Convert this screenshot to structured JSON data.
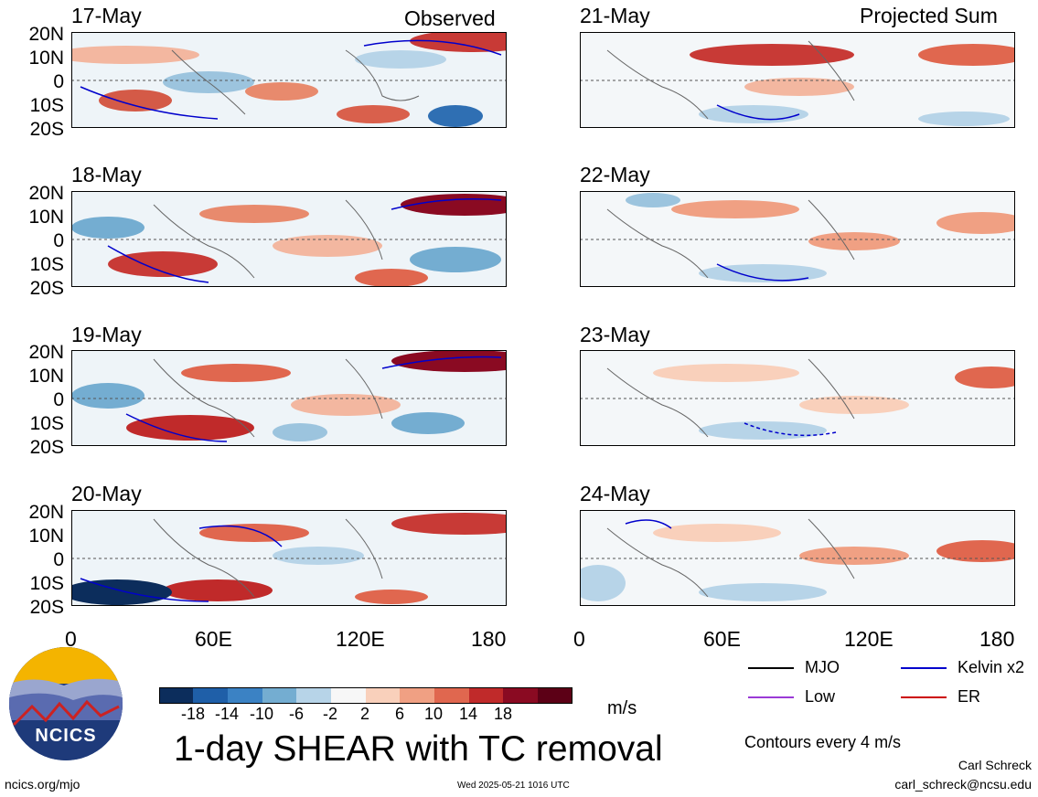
{
  "titles": {
    "left": "Observed",
    "right": "Projected Sum"
  },
  "panels_left": [
    {
      "date": "17-May"
    },
    {
      "date": "18-May"
    },
    {
      "date": "19-May"
    },
    {
      "date": "20-May"
    }
  ],
  "panels_right": [
    {
      "date": "21-May"
    },
    {
      "date": "22-May"
    },
    {
      "date": "23-May"
    },
    {
      "date": "24-May"
    }
  ],
  "lat_labels": [
    "20N",
    "10N",
    "0",
    "10S",
    "20S"
  ],
  "lon_labels": [
    "0",
    "60E",
    "120E",
    "180"
  ],
  "colorbar": {
    "ticks": [
      "-18",
      "-14",
      "-10",
      "-6",
      "-2",
      "2",
      "6",
      "10",
      "14",
      "18"
    ],
    "colors": [
      "#0c2d5c",
      "#1f5fa8",
      "#3b82c4",
      "#74add1",
      "#b7d4e8",
      "#f7f7f7",
      "#f9d0bb",
      "#f0a083",
      "#e0674f",
      "#c02a2a",
      "#8a0a22",
      "#5c0016"
    ],
    "unit": "m/s"
  },
  "main_title": "1-day SHEAR with TC removal",
  "legend": {
    "items": [
      {
        "label": "MJO",
        "color": "#000000"
      },
      {
        "label": "Kelvin x2",
        "color": "#0000cc"
      },
      {
        "label": "Low",
        "color": "#9a3ad6"
      },
      {
        "label": "ER",
        "color": "#cc0000"
      }
    ],
    "note": "Contours every 4 m/s"
  },
  "logo": {
    "text": "NCICS"
  },
  "footer": {
    "url": "ncics.org/mjo",
    "timestamp": "Wed 2025-05-21 1016 UTC",
    "author": "Carl Schreck",
    "email": "carl_schreck@ncsu.edu"
  }
}
